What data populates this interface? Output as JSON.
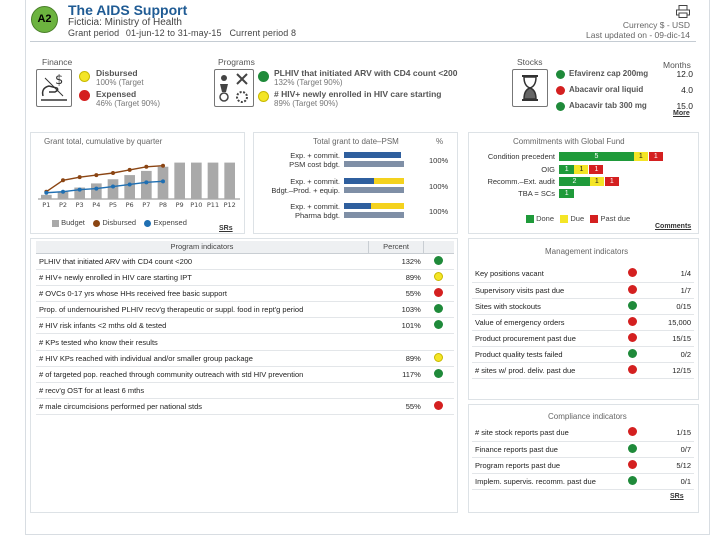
{
  "header": {
    "badge": "A2",
    "title": "The AIDS Support",
    "subtitle": "Ficticia: Ministry of Health",
    "grant_label": "Grant period",
    "grant_start": "01-jun-12",
    "grant_to": "to",
    "grant_end": "31-may-15",
    "period": "Current period 8",
    "currency": "Currency $ - USD",
    "updated": "Last updated on  - 09-dic-14"
  },
  "finance": {
    "label": "Finance",
    "disbursed_title": "Disbursed",
    "disbursed_sub": "100% (Target",
    "expensed_title": "Expensed",
    "expensed_sub": "46% (Target 90%)"
  },
  "programs": {
    "label": "Programs",
    "item1_title": "PLHIV that initiated ARV with CD4 count <200",
    "item1_sub": "132% (Target 90%)",
    "item2_title": "# HIV+ newly enrolled in HIV care starting",
    "item2_sub": "89% (Target 90%)"
  },
  "stocks": {
    "label": "Stocks",
    "months_label": "Months",
    "items": [
      {
        "name": "Efavirenz cap 200mg",
        "value": "12.0"
      },
      {
        "name": "Abacavir oral liquid",
        "value": "4.0"
      },
      {
        "name": "Abacavir tab 300 mg",
        "value": "15.0"
      }
    ],
    "more": "More"
  },
  "grant_chart": {
    "title": "Grant total, cumulative by quarter",
    "legend_budget": "Budget",
    "legend_disbursed": "Disbursed",
    "legend_expensed": "Expensed",
    "srs": "SRs"
  },
  "chart_data": {
    "type": "bar",
    "title": "Grant total, cumulative by quarter",
    "categories": [
      "P1",
      "P2",
      "P3",
      "P4",
      "P5",
      "P6",
      "P7",
      "P8",
      "P9",
      "P10",
      "P11",
      "P12"
    ],
    "ylim": [
      0,
      100
    ],
    "series": [
      {
        "name": "Budget",
        "type": "bar",
        "values": [
          8,
          14,
          22,
          30,
          38,
          46,
          54,
          62,
          70,
          70,
          70,
          70
        ]
      },
      {
        "name": "Disbursed",
        "type": "line",
        "values": [
          14,
          36,
          42,
          46,
          50,
          56,
          62,
          64,
          null,
          null,
          null,
          null
        ]
      },
      {
        "name": "Expensed",
        "type": "line",
        "values": [
          12,
          14,
          18,
          20,
          24,
          28,
          32,
          34,
          null,
          null,
          null,
          null
        ]
      }
    ],
    "colors": {
      "Budget": "#a9a9a9",
      "Disbursed": "#8b4513",
      "Expensed": "#1f6fb2"
    }
  },
  "psm": {
    "title": "Total grant to date–PSM",
    "pct_label": "%",
    "rows": [
      {
        "l1": "Exp. + commit.",
        "l2": "PSM cost bdgt.",
        "pct": "100%",
        "fill": 0.95,
        "prog": 0.5
      },
      {
        "l1": "Exp. + commit.",
        "l2": "Bdgt.–Prod. + equip.",
        "pct": "100%",
        "fill": 1.0,
        "prog": 0.5
      },
      {
        "l1": "Exp. + commit.",
        "l2": "Pharma bdgt.",
        "pct": "100%",
        "fill": 1.0,
        "prog": 0.45
      }
    ]
  },
  "commitments": {
    "title": "Commitments with Global Fund",
    "rows": [
      {
        "label": "Condition precedent",
        "green": "5",
        "yellow": "1",
        "red": "1",
        "gw": 0.68
      },
      {
        "label": "OIG",
        "green": "1",
        "yellow": "1",
        "red": "1",
        "gw": 0.14
      },
      {
        "label": "Recomm.–Ext. audit",
        "green": "2",
        "yellow": "1",
        "red": "1",
        "gw": 0.28
      },
      {
        "label": "TBA = SCs",
        "green": "1",
        "yellow": "",
        "red": "",
        "gw": 0.14
      }
    ],
    "legend_done": "Done",
    "legend_due": "Due",
    "legend_past": "Past due",
    "comments": "Comments"
  },
  "program_indicators": {
    "title": "Program indicators",
    "percent_label": "Percent",
    "rows": [
      {
        "name": "PLHIV that initiated ARV with CD4 count <200",
        "pct": "132%",
        "status": "green"
      },
      {
        "name": "# HIV+ newly enrolled in HIV care starting IPT",
        "pct": "89%",
        "status": "yellow"
      },
      {
        "name": "# OVCs 0-17 yrs whose HHs received free basic support",
        "pct": "55%",
        "status": "red"
      },
      {
        "name": "Prop. of undernourished PLHIV recv'g therapeutic or suppl. food in rept'g period",
        "pct": "103%",
        "status": "green"
      },
      {
        "name": "# HIV risk infants <2 mths old & tested",
        "pct": "101%",
        "status": "green"
      },
      {
        "name": "# KPs tested who know their results",
        "pct": "",
        "status": ""
      },
      {
        "name": "# HIV KPs reached with individual and/or smaller group package",
        "pct": "89%",
        "status": "yellow"
      },
      {
        "name": "# of targeted pop. reached through community outreach with std HIV prevention",
        "pct": "117%",
        "status": "green"
      },
      {
        "name": "# recv'g OST for at least 6 mths",
        "pct": "",
        "status": ""
      },
      {
        "name": "# male circumcisions performed per national stds",
        "pct": "55%",
        "status": "red"
      }
    ]
  },
  "management": {
    "title": "Management indicators",
    "rows": [
      {
        "name": "Key positions vacant",
        "status": "red",
        "value": "1/4"
      },
      {
        "name": "Supervisory visits past due",
        "status": "red",
        "value": "1/7"
      },
      {
        "name": "Sites with stockouts",
        "status": "green",
        "value": "0/15"
      },
      {
        "name": "Value of emergency orders",
        "status": "red",
        "value": "15,000"
      },
      {
        "name": "Product procurement past due",
        "status": "red",
        "value": "15/15"
      },
      {
        "name": "Product quality tests failed",
        "status": "green",
        "value": "0/2"
      },
      {
        "name": "# sites w/ prod. deliv. past due",
        "status": "red",
        "value": "12/15"
      }
    ]
  },
  "compliance": {
    "title": "Compliance indicators",
    "rows": [
      {
        "name": "# site stock reports past due",
        "status": "red",
        "value": "1/15"
      },
      {
        "name": "Finance reports past due",
        "status": "green",
        "value": "0/7"
      },
      {
        "name": "Program reports past due",
        "status": "red",
        "value": "5/12"
      },
      {
        "name": "Implem. supervis. recomm. past due",
        "status": "green",
        "value": "0/1"
      }
    ],
    "srs": "SRs"
  }
}
